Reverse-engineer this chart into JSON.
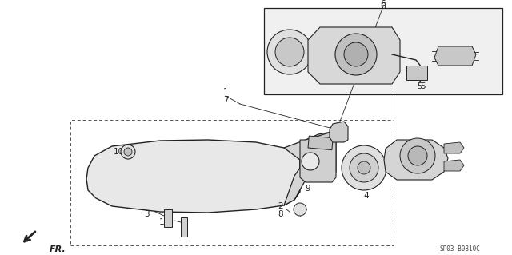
{
  "bg_color": "#ffffff",
  "line_color": "#222222",
  "watermark": "SP03-B0810C",
  "fig_w": 6.4,
  "fig_h": 3.19
}
